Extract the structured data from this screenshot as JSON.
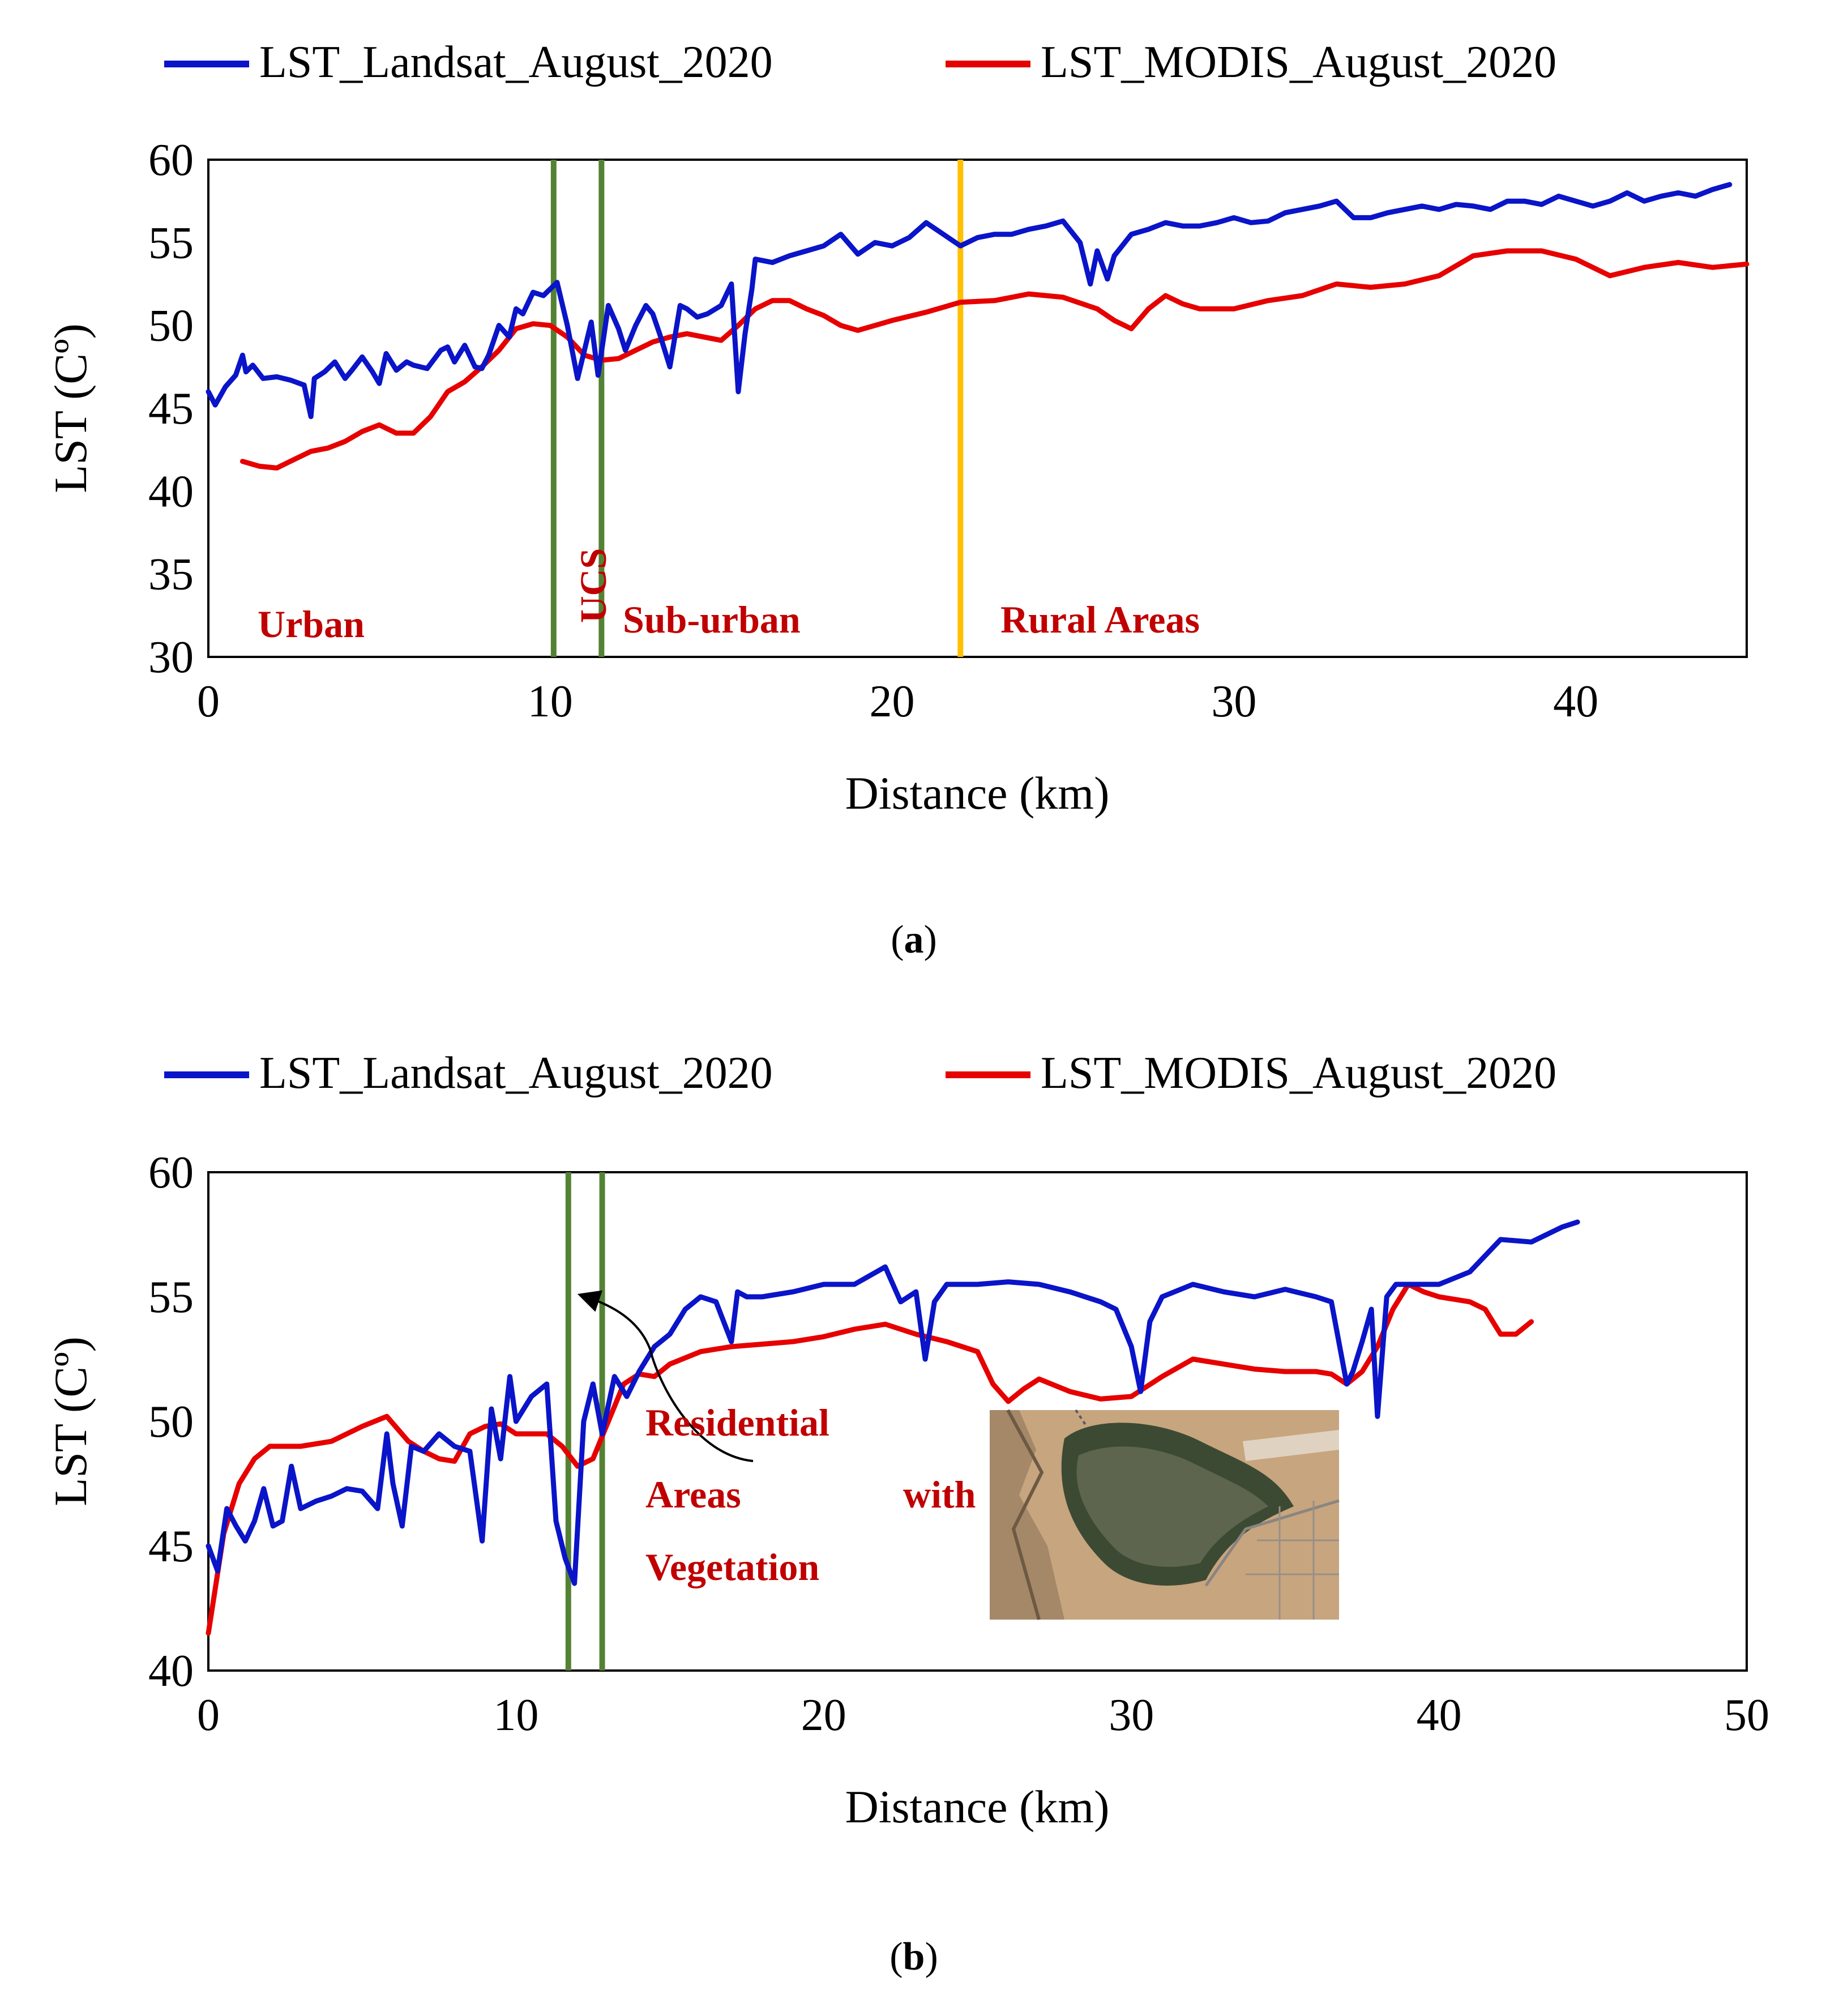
{
  "chart_data": [
    {
      "panel_label": "a",
      "type": "line",
      "title": "",
      "xlabel": "Distance (km)",
      "ylabel": "LST (Cº)",
      "xlim": [
        0,
        45
      ],
      "ylim": [
        30,
        60
      ],
      "xticks": [
        0,
        10,
        20,
        30,
        40
      ],
      "yticks": [
        30,
        35,
        40,
        45,
        50,
        55,
        60
      ],
      "legend": "top",
      "series": [
        {
          "name": "LST_Landsat_August_2020",
          "color": "#0a14c8",
          "x": [
            0,
            0.2,
            0.5,
            0.8,
            1.0,
            1.1,
            1.3,
            1.6,
            2.0,
            2.4,
            2.8,
            3.0,
            3.1,
            3.4,
            3.7,
            4.0,
            4.2,
            4.5,
            4.8,
            5.0,
            5.2,
            5.5,
            5.8,
            6.0,
            6.4,
            6.8,
            7.0,
            7.2,
            7.5,
            7.8,
            8.0,
            8.2,
            8.5,
            8.8,
            9.0,
            9.2,
            9.5,
            9.8,
            10.0,
            10.2,
            10.5,
            10.8,
            11.0,
            11.2,
            11.4,
            11.7,
            12.0,
            12.2,
            12.5,
            12.8,
            13.0,
            13.2,
            13.5,
            13.8,
            14.0,
            14.3,
            14.6,
            15.0,
            15.3,
            15.5,
            15.7,
            15.9,
            16.0,
            16.5,
            17.0,
            17.5,
            18.0,
            18.5,
            19.0,
            19.5,
            20.0,
            20.5,
            21.0,
            21.5,
            22.0,
            22.5,
            23.0,
            23.5,
            24.0,
            24.5,
            25.0,
            25.5,
            25.8,
            26.0,
            26.3,
            26.5,
            27.0,
            27.5,
            28.0,
            28.5,
            29.0,
            29.5,
            30.0,
            30.5,
            31.0,
            31.5,
            32.0,
            32.5,
            33.0,
            33.5,
            34.0,
            34.5,
            35.0,
            35.5,
            36.0,
            36.5,
            37.0,
            37.5,
            38.0,
            38.5,
            39.0,
            39.5,
            40.0,
            40.5,
            41.0,
            41.5,
            42.0,
            42.5,
            43.0,
            43.5,
            44.0,
            44.5
          ],
          "y": [
            46,
            45.2,
            46.3,
            47,
            48.2,
            47.2,
            47.6,
            46.8,
            46.9,
            46.7,
            46.4,
            44.5,
            46.8,
            47.2,
            47.8,
            46.8,
            47.3,
            48.1,
            47.2,
            46.5,
            48.3,
            47.3,
            47.8,
            47.6,
            47.4,
            48.5,
            48.7,
            47.8,
            48.8,
            47.5,
            47.4,
            48.2,
            50.0,
            49.3,
            51.0,
            50.7,
            52.0,
            51.8,
            52.2,
            52.6,
            50.0,
            46.8,
            48.5,
            50.2,
            47.0,
            51.2,
            49.8,
            48.5,
            50.0,
            51.2,
            50.7,
            49.5,
            47.5,
            51.2,
            51.0,
            50.5,
            50.7,
            51.2,
            52.5,
            46.0,
            49.5,
            52.2,
            54.0,
            53.8,
            54.2,
            54.5,
            54.8,
            55.5,
            54.3,
            55.0,
            54.8,
            55.3,
            56.2,
            55.5,
            54.8,
            55.3,
            55.5,
            55.5,
            55.8,
            56.0,
            56.3,
            55.0,
            52.5,
            54.5,
            52.8,
            54.2,
            55.5,
            55.8,
            56.2,
            56.0,
            56.0,
            56.2,
            56.5,
            56.2,
            56.3,
            56.8,
            57.0,
            57.2,
            57.5,
            56.5,
            56.5,
            56.8,
            57.0,
            57.2,
            57.0,
            57.3,
            57.2,
            57.0,
            57.5,
            57.5,
            57.3,
            57.8,
            57.5,
            57.2,
            57.5,
            58.0,
            57.5,
            57.8,
            58.0,
            57.8,
            58.2,
            58.5
          ],
          "values_estimated": true
        },
        {
          "name": "LST_MODIS_August_2020",
          "color": "#e60000",
          "x": [
            1.0,
            1.5,
            2.0,
            2.5,
            3.0,
            3.5,
            4.0,
            4.5,
            5.0,
            5.5,
            6.0,
            6.5,
            7.0,
            7.5,
            8.0,
            8.5,
            9.0,
            9.5,
            10.0,
            10.5,
            11.0,
            11.5,
            12.0,
            12.5,
            13.0,
            13.5,
            14.0,
            14.5,
            15.0,
            15.5,
            16.0,
            16.5,
            17.0,
            17.5,
            18.0,
            18.5,
            19.0,
            19.5,
            20.0,
            21.0,
            22.0,
            23.0,
            24.0,
            25.0,
            26.0,
            26.5,
            27.0,
            27.5,
            28.0,
            28.5,
            29.0,
            29.5,
            30.0,
            31.0,
            32.0,
            33.0,
            34.0,
            35.0,
            36.0,
            37.0,
            38.0,
            39.0,
            40.0,
            41.0,
            42.0,
            43.0,
            44.0,
            45.0
          ],
          "y": [
            41.8,
            41.5,
            41.4,
            41.9,
            42.4,
            42.6,
            43.0,
            43.6,
            44.0,
            43.5,
            43.5,
            44.5,
            46.0,
            46.6,
            47.5,
            48.5,
            49.8,
            50.1,
            50.0,
            49.3,
            48.2,
            47.9,
            48.0,
            48.5,
            49.0,
            49.3,
            49.5,
            49.3,
            49.1,
            50.0,
            51.0,
            51.5,
            51.5,
            51.0,
            50.6,
            50.0,
            49.7,
            50.0,
            50.3,
            50.8,
            51.4,
            51.5,
            51.9,
            51.7,
            51.0,
            50.3,
            49.8,
            51.0,
            51.8,
            51.3,
            51.0,
            51.0,
            51.0,
            51.5,
            51.8,
            52.5,
            52.3,
            52.5,
            53.0,
            54.2,
            54.5,
            54.5,
            54.0,
            53.0,
            53.5,
            53.8,
            53.5,
            53.7
          ],
          "values_estimated": true
        }
      ],
      "boundaries": [
        {
          "x": 10.1,
          "color": "#548235"
        },
        {
          "x": 11.5,
          "color": "#548235"
        },
        {
          "x": 22.0,
          "color": "#ffc000"
        }
      ],
      "annotations": [
        {
          "text": "Urban",
          "x": 1.4,
          "y": 31.6
        },
        {
          "text": "UCS",
          "x": 11.0,
          "y": 34.5,
          "rotation": -90
        },
        {
          "text": "Sub-urban",
          "x": 12.2,
          "y": 31.8
        },
        {
          "text": "Rural Areas",
          "x": 23.2,
          "y": 31.8
        }
      ]
    },
    {
      "panel_label": "b",
      "type": "line",
      "title": "",
      "xlabel": "Distance (km)",
      "ylabel": "LST (Cº)",
      "xlim": [
        0,
        50
      ],
      "ylim": [
        40,
        60
      ],
      "xticks": [
        0,
        10,
        20,
        30,
        40,
        50
      ],
      "yticks": [
        40,
        45,
        50,
        55,
        60
      ],
      "legend": "top",
      "series": [
        {
          "name": "LST_Landsat_August_2020",
          "color": "#0a14c8",
          "x": [
            0,
            0.3,
            0.6,
            0.9,
            1.2,
            1.5,
            1.8,
            2.1,
            2.4,
            2.7,
            3.0,
            3.5,
            4.0,
            4.5,
            5.0,
            5.5,
            5.8,
            6.0,
            6.3,
            6.6,
            7.0,
            7.5,
            8.0,
            8.5,
            8.9,
            9.2,
            9.5,
            9.8,
            10.0,
            10.5,
            11.0,
            11.3,
            11.6,
            11.9,
            12.2,
            12.5,
            12.8,
            13.2,
            13.6,
            14.0,
            14.5,
            15.0,
            15.5,
            16.0,
            16.5,
            17.0,
            17.2,
            17.5,
            18.0,
            19.0,
            20.0,
            21.0,
            22.0,
            22.5,
            23.0,
            23.3,
            23.6,
            24.0,
            25.0,
            26.0,
            27.0,
            28.0,
            29.0,
            29.5,
            30.0,
            30.3,
            30.6,
            31.0,
            32.0,
            33.0,
            34.0,
            35.0,
            36.0,
            36.5,
            37.0,
            37.2,
            37.5,
            37.8,
            38.0,
            38.3,
            38.6,
            39.0,
            40.0,
            41.0,
            42.0,
            43.0,
            44.0,
            44.5
          ],
          "y": [
            45,
            44,
            46.5,
            45.8,
            45.2,
            46.0,
            47.3,
            45.8,
            46.0,
            48.2,
            46.5,
            46.8,
            47.0,
            47.3,
            47.2,
            46.5,
            49.5,
            47.5,
            45.8,
            49.0,
            48.8,
            49.5,
            49.0,
            48.8,
            45.2,
            50.5,
            48.5,
            51.8,
            50.0,
            51.0,
            51.5,
            46.0,
            44.5,
            43.5,
            50.0,
            51.5,
            49.5,
            51.8,
            51.0,
            52.0,
            53.0,
            53.5,
            54.5,
            55.0,
            54.8,
            53.2,
            55.2,
            55.0,
            55.0,
            55.2,
            55.5,
            55.5,
            56.2,
            54.8,
            55.2,
            52.5,
            54.8,
            55.5,
            55.5,
            55.6,
            55.5,
            55.2,
            54.8,
            54.5,
            53.0,
            51.2,
            54.0,
            55.0,
            55.5,
            55.2,
            55.0,
            55.3,
            55.0,
            54.8,
            51.5,
            52.0,
            53.2,
            54.5,
            50.2,
            55.0,
            55.5,
            55.5,
            55.5,
            56.0,
            57.3,
            57.2,
            57.8,
            58.0
          ],
          "values_estimated": true
        },
        {
          "name": "LST_MODIS_August_2020",
          "color": "#e60000",
          "x": [
            0,
            0.5,
            1.0,
            1.5,
            2.0,
            2.5,
            3.0,
            4.0,
            5.0,
            5.8,
            6.5,
            7.0,
            7.5,
            8.0,
            8.5,
            9.0,
            9.5,
            10.0,
            10.5,
            11.0,
            11.5,
            12.0,
            12.5,
            13.0,
            13.5,
            14.0,
            14.5,
            15.0,
            16.0,
            17.0,
            18.0,
            19.0,
            20.0,
            21.0,
            22.0,
            23.0,
            24.0,
            25.0,
            25.5,
            26.0,
            26.5,
            27.0,
            28.0,
            29.0,
            30.0,
            31.0,
            32.0,
            33.0,
            34.0,
            35.0,
            36.0,
            36.5,
            37.0,
            37.5,
            38.0,
            38.5,
            39.0,
            39.5,
            40.0,
            41.0,
            41.5,
            42.0,
            42.5,
            43.0
          ],
          "y": [
            41.5,
            45.5,
            47.5,
            48.5,
            49.0,
            49.0,
            49.0,
            49.2,
            49.8,
            50.2,
            49.2,
            48.8,
            48.5,
            48.4,
            49.5,
            49.8,
            49.9,
            49.5,
            49.5,
            49.5,
            49.0,
            48.2,
            48.5,
            50.0,
            51.5,
            51.9,
            51.8,
            52.3,
            52.8,
            53.0,
            53.1,
            53.2,
            53.4,
            53.7,
            53.9,
            53.5,
            53.2,
            52.8,
            51.5,
            50.8,
            51.3,
            51.7,
            51.2,
            50.9,
            51.0,
            51.8,
            52.5,
            52.3,
            52.1,
            52.0,
            52.0,
            51.9,
            51.5,
            52.0,
            53.0,
            54.5,
            55.5,
            55.2,
            55.0,
            54.8,
            54.5,
            53.5,
            53.5,
            54.0
          ],
          "values_estimated": true
        }
      ],
      "boundaries": [
        {
          "x": 11.7,
          "color": "#548235"
        },
        {
          "x": 12.8,
          "color": "#548235"
        }
      ],
      "annotations": [
        {
          "text": "Residential",
          "x": 14.2,
          "y": 49.8
        },
        {
          "text": "Areas",
          "x": 14.2,
          "y": 48.2
        },
        {
          "text": "with",
          "x": 22.5,
          "y": 48.2
        },
        {
          "text": "Vegetation",
          "x": 14.2,
          "y": 46.7
        }
      ],
      "inset_image": {
        "name": "satellite image of residential area with vegetation"
      }
    }
  ]
}
